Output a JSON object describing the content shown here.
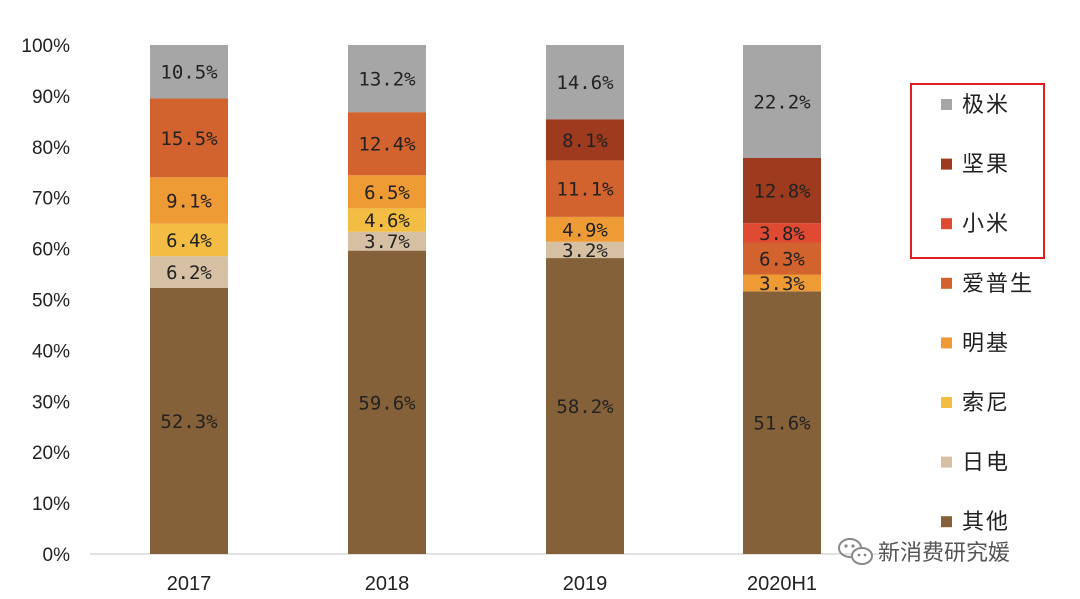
{
  "chart_data": {
    "type": "bar",
    "stacked": true,
    "title": "",
    "xlabel": "",
    "ylabel": "",
    "ylim": [
      0,
      100
    ],
    "y_ticks": [
      "0%",
      "10%",
      "20%",
      "30%",
      "40%",
      "50%",
      "60%",
      "70%",
      "80%",
      "90%",
      "100%"
    ],
    "categories": [
      "2017",
      "2018",
      "2019",
      "2020H1"
    ],
    "series": [
      {
        "name": "其他",
        "color": "#85613a",
        "values": [
          52.3,
          59.6,
          58.2,
          51.6
        ],
        "labels": [
          "52.3%",
          "59.6%",
          "58.2%",
          "51.6%"
        ]
      },
      {
        "name": "日电",
        "color": "#d5c0a3",
        "values": [
          6.2,
          3.7,
          3.2,
          0
        ],
        "labels": [
          "6.2%",
          "3.7%",
          "3.2%",
          ""
        ]
      },
      {
        "name": "索尼",
        "color": "#f2bd42",
        "values": [
          6.4,
          4.6,
          0,
          0
        ],
        "labels": [
          "6.4%",
          "4.6%",
          "",
          ""
        ]
      },
      {
        "name": "明基",
        "color": "#ee9b35",
        "values": [
          9.1,
          6.5,
          4.9,
          3.3
        ],
        "labels": [
          "9.1%",
          "6.5%",
          "4.9%",
          "3.3%"
        ]
      },
      {
        "name": "爱普生",
        "color": "#d2622e",
        "values": [
          15.5,
          12.4,
          11.1,
          6.3
        ],
        "labels": [
          "15.5%",
          "12.4%",
          "11.1%",
          "6.3%"
        ]
      },
      {
        "name": "小米",
        "color": "#e04a32",
        "values": [
          0,
          0,
          0,
          3.8
        ],
        "labels": [
          "",
          "",
          "",
          "3.8%"
        ]
      },
      {
        "name": "坚果",
        "color": "#9e3a1d",
        "values": [
          0,
          0,
          8.1,
          12.8
        ],
        "labels": [
          "",
          "",
          "8.1%",
          "12.8%"
        ]
      },
      {
        "name": "极米",
        "color": "#a6a6a6",
        "values": [
          10.5,
          13.2,
          14.6,
          22.2
        ],
        "labels": [
          "10.5%",
          "13.2%",
          "14.6%",
          "22.2%"
        ]
      }
    ],
    "legend": {
      "position": "right",
      "order": [
        "极米",
        "坚果",
        "小米",
        "爱普生",
        "明基",
        "索尼",
        "日电",
        "其他"
      ],
      "highlight_box_items": [
        "极米",
        "坚果",
        "小米"
      ],
      "highlight_color": "#e02020"
    }
  },
  "watermark": {
    "text": "新消费研究媛",
    "icon": "wechat-icon"
  }
}
